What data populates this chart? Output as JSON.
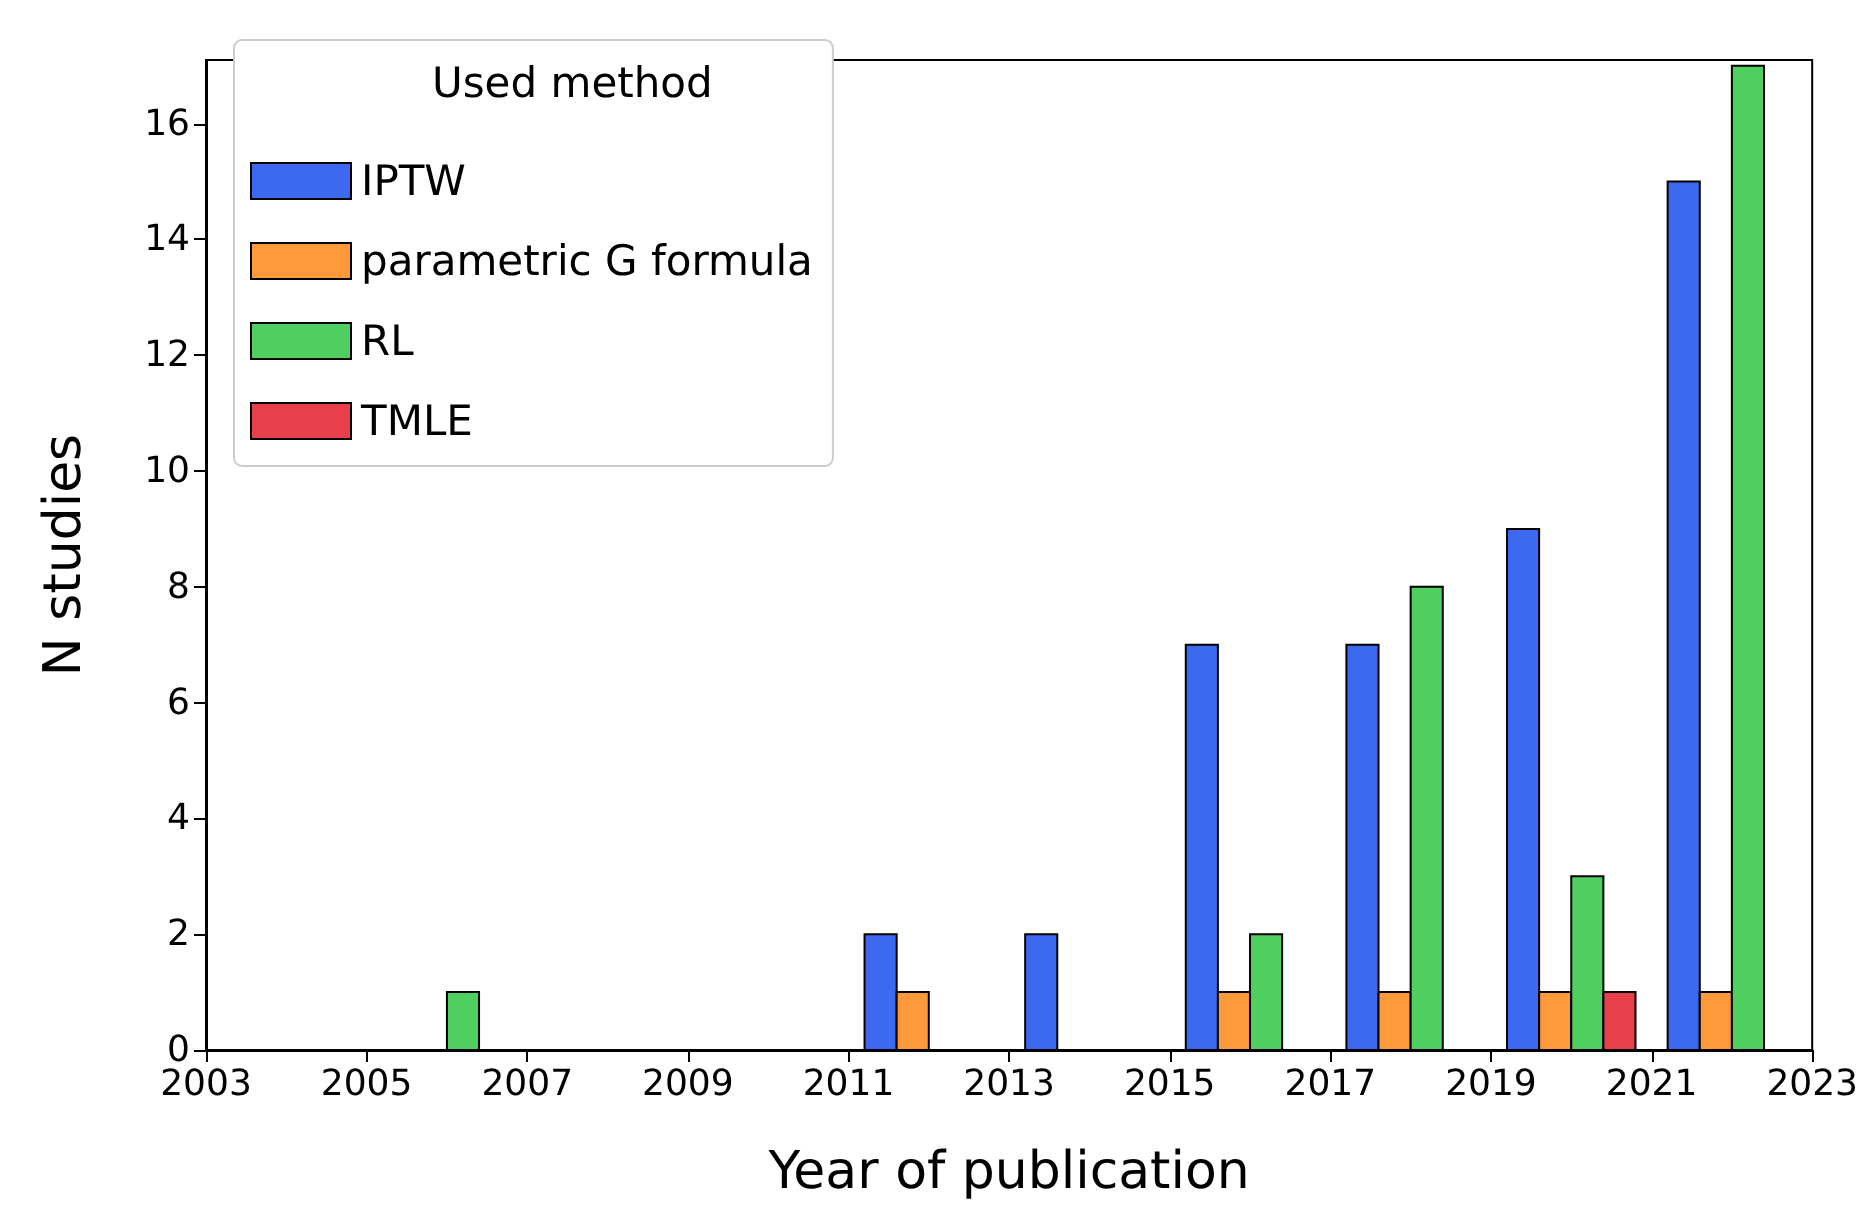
{
  "chart_data": {
    "type": "histogram",
    "xlabel": "Year of publication",
    "ylabel": "N studies",
    "legend_title": "Used method",
    "bins": [
      2003,
      2005,
      2007,
      2009,
      2011,
      2013,
      2015,
      2017,
      2019,
      2021,
      2023
    ],
    "series": [
      {
        "name": "IPTW",
        "color": "#3d68f0",
        "values": [
          0,
          0,
          0,
          0,
          2,
          2,
          7,
          7,
          9,
          15
        ]
      },
      {
        "name": "parametric G formula",
        "color": "#ff9a3c",
        "values": [
          0,
          0,
          0,
          0,
          1,
          0,
          1,
          1,
          1,
          1
        ]
      },
      {
        "name": "RL",
        "color": "#4fcf5f",
        "values": [
          0,
          1,
          0,
          0,
          0,
          0,
          2,
          8,
          3,
          17
        ]
      },
      {
        "name": "TMLE",
        "color": "#e8404a",
        "values": [
          0,
          0,
          0,
          0,
          0,
          0,
          0,
          0,
          1,
          0
        ]
      }
    ],
    "xlim": [
      2003,
      2023
    ],
    "xticks": [
      2003,
      2005,
      2007,
      2009,
      2011,
      2013,
      2015,
      2017,
      2019,
      2021,
      2023
    ],
    "ylim": [
      0,
      17.1
    ],
    "yticks": [
      0,
      2,
      4,
      6,
      8,
      10,
      12,
      14,
      16
    ],
    "grid": false,
    "legend": "top left"
  }
}
